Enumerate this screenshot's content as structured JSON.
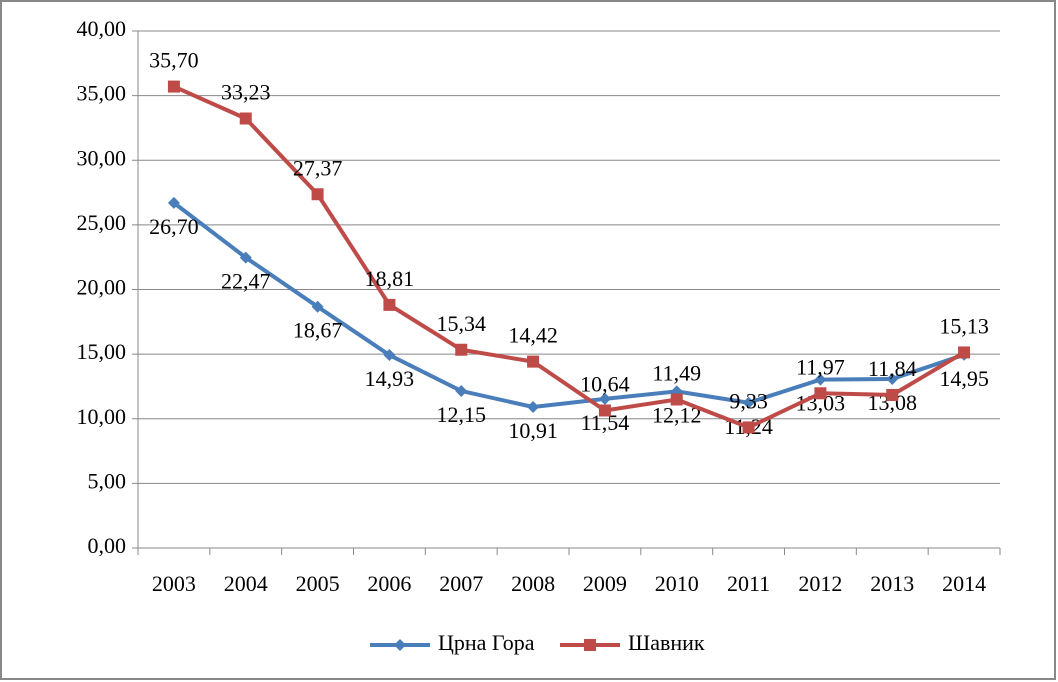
{
  "chart_data": {
    "type": "line",
    "categories": [
      "2003",
      "2004",
      "2005",
      "2006",
      "2007",
      "2008",
      "2009",
      "2010",
      "2011",
      "2012",
      "2013",
      "2014"
    ],
    "series": [
      {
        "name": "Црна Гора",
        "color": "#4a7ebb",
        "marker": "diamond",
        "values": [
          26.7,
          22.47,
          18.67,
          14.93,
          12.15,
          10.91,
          11.54,
          12.12,
          11.24,
          13.03,
          13.08,
          14.95
        ],
        "value_labels": [
          "26,70",
          "22,47",
          "18,67",
          "14,93",
          "12,15",
          "10,91",
          "11,54",
          "12,12",
          "11,24",
          "13,03",
          "13,08",
          "14,95"
        ]
      },
      {
        "name": "Шавник",
        "color": "#be4b48",
        "marker": "square",
        "values": [
          35.7,
          33.23,
          27.37,
          18.81,
          15.34,
          14.42,
          10.64,
          11.49,
          9.33,
          11.97,
          11.84,
          15.13
        ],
        "value_labels": [
          "35,70",
          "33,23",
          "27,37",
          "18,81",
          "15,34",
          "14,42",
          "10,64",
          "11,49",
          "9,33",
          "11,97",
          "11,84",
          "15,13"
        ]
      }
    ],
    "ylim": [
      0,
      40
    ],
    "yticks": [
      {
        "value": 0,
        "label": "0,00"
      },
      {
        "value": 5,
        "label": "5,00"
      },
      {
        "value": 10,
        "label": "10,00"
      },
      {
        "value": 15,
        "label": "15,00"
      },
      {
        "value": 20,
        "label": "20,00"
      },
      {
        "value": 25,
        "label": "25,00"
      },
      {
        "value": 30,
        "label": "30,00"
      },
      {
        "value": 35,
        "label": "35,00"
      },
      {
        "value": 40,
        "label": "40,00"
      }
    ],
    "grid": true,
    "legend": "bottom"
  }
}
